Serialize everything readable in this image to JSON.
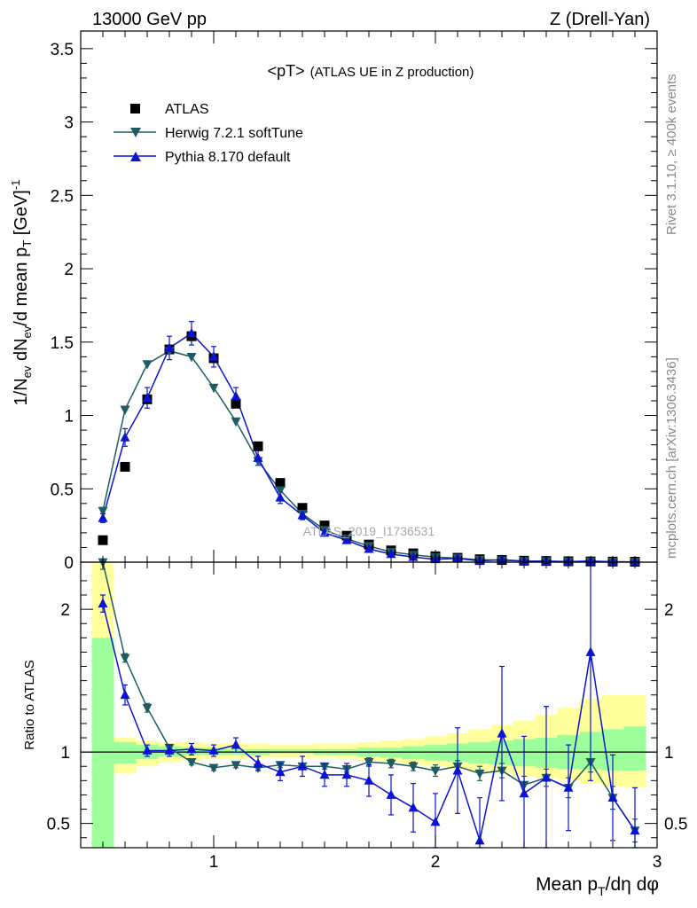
{
  "header": {
    "left": "13000 GeV pp",
    "right": "Z (Drell-Yan)"
  },
  "side_labels": {
    "top": "Rivet 3.1.10, ≥ 400k events",
    "bottom": "mcplots.cern.ch [arXiv:1306.3436]"
  },
  "watermark": "ATLAS_2019_I1736531",
  "chart_data": [
    {
      "type": "scatter",
      "title": "<pT> (ATLAS UE in Z production)",
      "title_main": "<pT>",
      "title_sub": "(ATLAS UE in Z production)",
      "xlabel": "Mean p_T/dη dφ",
      "ylabel": "1/N_ev dN_ev/d mean p_T [GeV]^-1",
      "xlim": [
        0.4,
        3.0
      ],
      "ylim": [
        0,
        3.62
      ],
      "y_ticks": [
        0,
        0.5,
        1,
        1.5,
        2,
        2.5,
        3,
        3.5
      ],
      "y_tick_labels": [
        "0",
        "0.5",
        "1",
        "1.5",
        "2",
        "2.5",
        "3",
        "3.5"
      ],
      "legend_position": "top-left",
      "x": [
        0.5,
        0.6,
        0.7,
        0.8,
        0.9,
        1.0,
        1.1,
        1.2,
        1.3,
        1.4,
        1.5,
        1.6,
        1.7,
        1.8,
        1.9,
        2.0,
        2.1,
        2.2,
        2.3,
        2.4,
        2.5,
        2.6,
        2.7,
        2.8,
        2.9
      ],
      "series": [
        {
          "name": "ATLAS",
          "color": "#000000",
          "marker": "square",
          "values": [
            0.15,
            0.65,
            1.11,
            1.45,
            1.54,
            1.39,
            1.08,
            0.79,
            0.54,
            0.37,
            0.25,
            0.18,
            0.12,
            0.08,
            0.06,
            0.04,
            0.03,
            0.02,
            0.015,
            0.01,
            0.008,
            0.006,
            0.005,
            0.004,
            0.003
          ]
        },
        {
          "name": "Herwig 7.2.1 softTune",
          "color": "#1d5c63",
          "marker": "triangle-down",
          "values": [
            0.35,
            1.04,
            1.35,
            1.44,
            1.4,
            1.19,
            0.96,
            0.69,
            0.49,
            0.33,
            0.22,
            0.16,
            0.11,
            0.07,
            0.05,
            0.035,
            0.027,
            0.017,
            0.013,
            0.008,
            0.0065,
            0.0045,
            0.0045,
            0.003,
            0.002
          ]
        },
        {
          "name": "Pythia 8.170 default",
          "color": "#0a14d2",
          "marker": "triangle-up",
          "values": [
            0.3,
            0.85,
            1.12,
            1.46,
            1.56,
            1.4,
            1.13,
            0.71,
            0.44,
            0.32,
            0.2,
            0.15,
            0.09,
            0.055,
            0.035,
            0.02,
            0.026,
            0.008,
            0.017,
            0.007,
            0.0065,
            0.004,
            0.008,
            0.002,
            0.0015
          ],
          "err": [
            0.03,
            0.06,
            0.07,
            0.08,
            0.08,
            0.07,
            0.06,
            0.05,
            0.04,
            0.03,
            0.02,
            0.02,
            0.015,
            0.01,
            0.008,
            0.006,
            0.005,
            0.004,
            0.003,
            0.003,
            0.002,
            0.002,
            0.002,
            0.001,
            0.001
          ]
        }
      ]
    },
    {
      "type": "scatter",
      "title": "Ratio to ATLAS",
      "ylabel": "Ratio to ATLAS",
      "xlabel": "Mean p_T/dη dφ",
      "xlim": [
        0.4,
        3.0
      ],
      "ylim": [
        0.33,
        2.33
      ],
      "x_ticks": [
        1,
        2,
        3
      ],
      "x_tick_labels": [
        "1",
        "2",
        "3"
      ],
      "y_ticks": [
        0.5,
        1,
        2
      ],
      "y_tick_labels": [
        "0.5",
        "1",
        "2"
      ],
      "reference_line": 1,
      "bands": {
        "edges": [
          0.45,
          0.55,
          0.65,
          0.75,
          0.85,
          0.95,
          1.05,
          1.15,
          1.25,
          1.35,
          1.45,
          1.55,
          1.65,
          1.75,
          1.85,
          1.95,
          2.05,
          2.15,
          2.25,
          2.35,
          2.45,
          2.55,
          2.65,
          2.75,
          2.85,
          2.95
        ],
        "stat_color": "#9cff9c",
        "total_color": "#ffff9c",
        "stat_lo": [
          0.33,
          0.92,
          0.95,
          0.97,
          0.98,
          0.98,
          0.98,
          0.98,
          0.99,
          0.99,
          0.98,
          0.98,
          0.97,
          0.96,
          0.95,
          0.94,
          0.93,
          0.92,
          0.91,
          0.9,
          0.89,
          0.88,
          0.88,
          0.87,
          0.87
        ],
        "stat_hi": [
          1.8,
          1.07,
          1.05,
          1.04,
          1.03,
          1.03,
          1.02,
          1.02,
          1.02,
          1.02,
          1.02,
          1.02,
          1.03,
          1.03,
          1.04,
          1.05,
          1.06,
          1.07,
          1.08,
          1.09,
          1.1,
          1.12,
          1.14,
          1.16,
          1.18
        ],
        "total_lo": [
          0.33,
          0.85,
          0.9,
          0.93,
          0.94,
          0.95,
          0.95,
          0.96,
          0.96,
          0.96,
          0.96,
          0.95,
          0.94,
          0.93,
          0.91,
          0.9,
          0.88,
          0.86,
          0.85,
          0.83,
          0.82,
          0.8,
          0.78,
          0.76,
          0.75
        ],
        "total_hi": [
          2.33,
          1.1,
          1.08,
          1.07,
          1.07,
          1.06,
          1.06,
          1.06,
          1.05,
          1.05,
          1.06,
          1.06,
          1.07,
          1.08,
          1.09,
          1.11,
          1.13,
          1.16,
          1.19,
          1.22,
          1.26,
          1.31,
          1.37,
          1.4,
          1.4
        ]
      },
      "series": [
        {
          "name": "Herwig 7.2.1 softTune",
          "color": "#1d5c63",
          "marker": "triangle-down",
          "values": [
            2.33,
            1.66,
            1.31,
            1.03,
            0.93,
            0.89,
            0.91,
            0.89,
            0.91,
            0.9,
            0.9,
            0.88,
            0.93,
            0.92,
            0.9,
            0.87,
            0.9,
            0.85,
            0.87,
            0.77,
            0.82,
            0.75,
            0.93,
            0.68,
            0.45
          ],
          "err": [
            0.05,
            0.03,
            0.03,
            0.02,
            0.02,
            0.02,
            0.02,
            0.02,
            0.02,
            0.02,
            0.02,
            0.02,
            0.03,
            0.03,
            0.03,
            0.04,
            0.04,
            0.05,
            0.05,
            0.06,
            0.06,
            0.07,
            0.07,
            0.08,
            0.08
          ]
        },
        {
          "name": "Pythia 8.170 default",
          "color": "#0a14d2",
          "marker": "triangle-up",
          "values": [
            2.04,
            1.4,
            1.01,
            1.01,
            1.02,
            1.01,
            1.05,
            0.92,
            0.86,
            0.9,
            0.84,
            0.84,
            0.8,
            0.7,
            0.61,
            0.51,
            0.87,
            0.38,
            1.13,
            0.71,
            0.82,
            0.75,
            1.7,
            0.68,
            0.45
          ],
          "err": [
            0.06,
            0.07,
            0.04,
            0.04,
            0.04,
            0.04,
            0.05,
            0.05,
            0.06,
            0.07,
            0.08,
            0.08,
            0.11,
            0.14,
            0.17,
            0.2,
            0.3,
            0.3,
            0.47,
            0.4,
            0.5,
            0.3,
            0.9,
            0.3,
            0.3
          ]
        }
      ]
    }
  ]
}
